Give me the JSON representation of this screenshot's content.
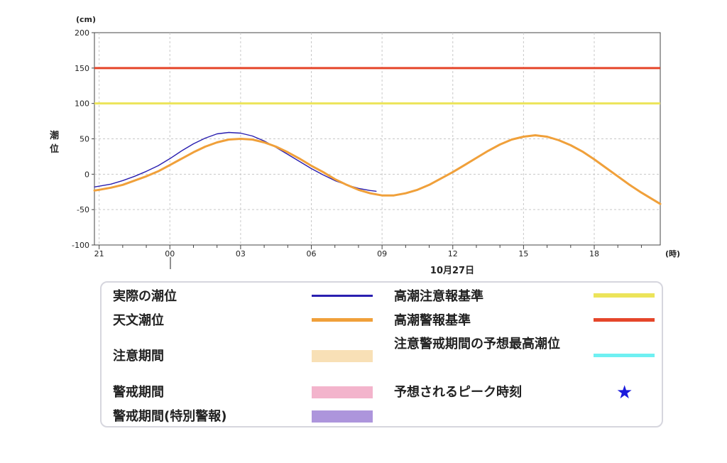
{
  "chart_data": {
    "type": "line",
    "yunit": "(cm)",
    "ylabel": "潮位",
    "xunit": "(時)",
    "date_label": "10月27日",
    "ylim": [
      -100,
      200
    ],
    "yticks": [
      200,
      150,
      100,
      50,
      0,
      -50,
      -100
    ],
    "xticks": [
      "21",
      "00",
      "03",
      "06",
      "09",
      "12",
      "15",
      "18"
    ],
    "x_hours_range": [
      -3.2,
      20.8
    ],
    "grid": true,
    "series": [
      {
        "name": "実際の潮位",
        "color": "#2a1fb0",
        "x": [
          -3.2,
          -2.5,
          -2.0,
          -1.5,
          -1.0,
          -0.5,
          0.0,
          0.5,
          1.0,
          1.5,
          2.0,
          2.5,
          3.0,
          3.5,
          4.0,
          4.5,
          5.0,
          5.5,
          6.0,
          6.5,
          7.0,
          7.5,
          8.0,
          8.5,
          8.75
        ],
        "values": [
          -18,
          -14,
          -9,
          -3,
          4,
          12,
          22,
          33,
          43,
          51,
          57,
          59,
          58,
          54,
          47,
          38,
          28,
          18,
          8,
          -1,
          -9,
          -15,
          -20,
          -23,
          -24
        ]
      },
      {
        "name": "天文潮位",
        "color": "#f0a03a",
        "x": [
          -3.2,
          -3.0,
          -2.5,
          -2.0,
          -1.5,
          -1.0,
          -0.5,
          0.0,
          0.5,
          1.0,
          1.5,
          2.0,
          2.5,
          3.0,
          3.5,
          4.0,
          4.5,
          5.0,
          5.5,
          6.0,
          6.5,
          7.0,
          7.5,
          8.0,
          8.5,
          9.0,
          9.5,
          10.0,
          10.5,
          11.0,
          11.5,
          12.0,
          12.5,
          13.0,
          13.5,
          14.0,
          14.5,
          15.0,
          15.5,
          16.0,
          16.5,
          17.0,
          17.5,
          18.0,
          18.5,
          19.0,
          19.5,
          20.0,
          20.5,
          20.8
        ],
        "values": [
          -23,
          -22,
          -19,
          -15,
          -9,
          -3,
          4,
          13,
          22,
          31,
          39,
          45,
          49,
          50,
          49,
          45,
          39,
          31,
          22,
          12,
          3,
          -7,
          -15,
          -22,
          -27,
          -30,
          -30,
          -27,
          -22,
          -15,
          -6,
          3,
          13,
          23,
          33,
          42,
          49,
          53,
          55,
          53,
          48,
          41,
          32,
          21,
          9,
          -3,
          -15,
          -26,
          -36,
          -42
        ]
      },
      {
        "name": "高潮注意報基準",
        "color": "#ece45a",
        "constant": 100
      },
      {
        "name": "高潮警報基準",
        "color": "#e5462a",
        "constant": 150
      }
    ]
  },
  "legend": {
    "actual": "実際の潮位",
    "astro": "天文潮位",
    "caution_period": "注意期間",
    "warning_period": "警戒期間",
    "special_period": "警戒期間(特別警報)",
    "caution_std": "高潮注意報基準",
    "warning_std": "高潮警報基準",
    "predicted_max": "注意警戒期間の予想最高潮位",
    "peak_time": "予想されるピーク時刻",
    "star_symbol": "★",
    "colors": {
      "actual": "#2a1fb0",
      "astro": "#f0a03a",
      "caution_period": "#f8e0b6",
      "warning_period": "#f3b4cc",
      "special_period": "#ad95dc",
      "caution_std": "#ece45a",
      "warning_std": "#e5462a",
      "predicted_max": "#6ff0f2",
      "peak_time": "#1a1adc"
    }
  }
}
